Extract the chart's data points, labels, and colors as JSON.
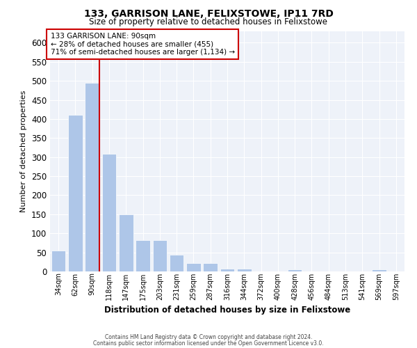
{
  "title": "133, GARRISON LANE, FELIXSTOWE, IP11 7RD",
  "subtitle": "Size of property relative to detached houses in Felixstowe",
  "xlabel": "Distribution of detached houses by size in Felixstowe",
  "ylabel": "Number of detached properties",
  "bar_color": "#aec6e8",
  "bar_edge_color": "#ffffff",
  "background_color": "#eef2f9",
  "grid_color": "#ffffff",
  "categories": [
    "34sqm",
    "62sqm",
    "90sqm",
    "118sqm",
    "147sqm",
    "175sqm",
    "203sqm",
    "231sqm",
    "259sqm",
    "287sqm",
    "316sqm",
    "344sqm",
    "372sqm",
    "400sqm",
    "428sqm",
    "456sqm",
    "484sqm",
    "513sqm",
    "541sqm",
    "569sqm",
    "597sqm"
  ],
  "values": [
    55,
    410,
    495,
    308,
    150,
    82,
    82,
    44,
    22,
    22,
    8,
    8,
    0,
    0,
    5,
    0,
    0,
    0,
    0,
    5,
    0
  ],
  "ylim": [
    0,
    630
  ],
  "yticks": [
    0,
    50,
    100,
    150,
    200,
    250,
    300,
    350,
    400,
    450,
    500,
    550,
    600
  ],
  "property_line_bin": 2,
  "annotation_text": "133 GARRISON LANE: 90sqm\n← 28% of detached houses are smaller (455)\n71% of semi-detached houses are larger (1,134) →",
  "annotation_box_color": "#ffffff",
  "annotation_box_edge": "#cc0000",
  "property_line_color": "#cc0000",
  "footer_line1": "Contains HM Land Registry data © Crown copyright and database right 2024.",
  "footer_line2": "Contains public sector information licensed under the Open Government Licence v3.0."
}
